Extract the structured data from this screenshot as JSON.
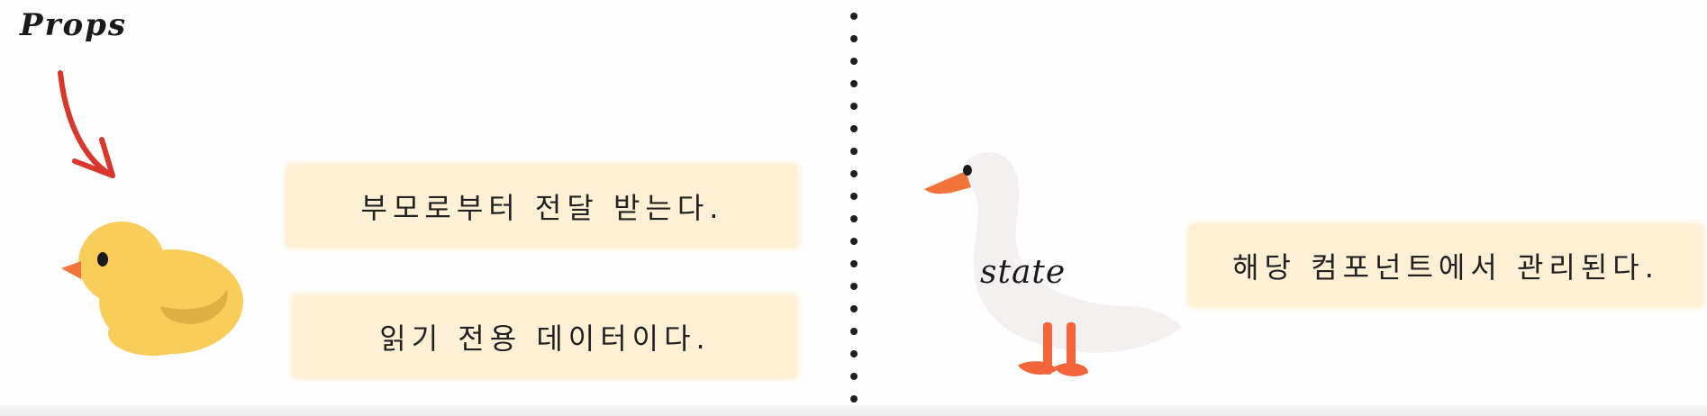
{
  "labels": {
    "props": "Props",
    "state": "state"
  },
  "props_notes": [
    "부모로부터 전달 받는다.",
    "읽기 전용 데이터이다."
  ],
  "state_notes": [
    "해당 컴포넌트에서 관리된다."
  ],
  "colors": {
    "arrow": "#d9362c",
    "chick_body": "#f9cd5a",
    "chick_wing": "#d9a940",
    "beak": "#f3743a",
    "goose_body": "#f4f0ef",
    "goose_legs": "#f3643a",
    "note_bg": "#fdf0d4",
    "divider_dots": "#1e1e1e"
  },
  "icons": [
    "chick-illustration",
    "goose-illustration",
    "red-arrow-icon",
    "dotted-divider"
  ]
}
